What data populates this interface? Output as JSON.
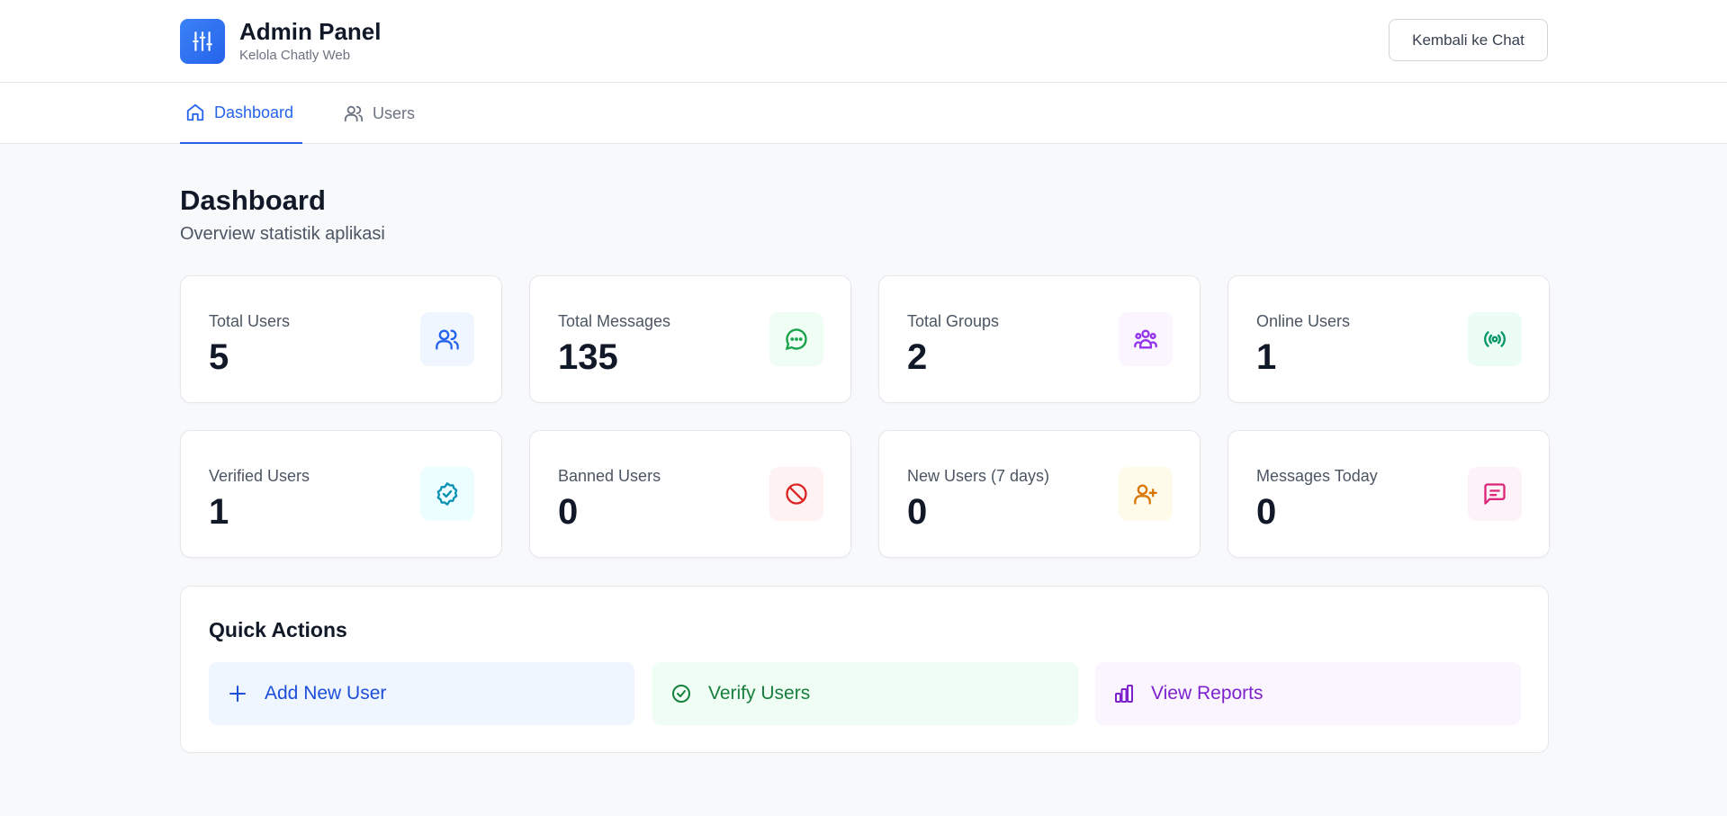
{
  "header": {
    "title": "Admin Panel",
    "subtitle": "Kelola Chatly Web",
    "back_button": "Kembali ke Chat",
    "logo_icon": "sliders-icon"
  },
  "tabs": [
    {
      "label": "Dashboard",
      "icon": "home-icon",
      "active": true
    },
    {
      "label": "Users",
      "icon": "users-icon",
      "active": false
    }
  ],
  "page": {
    "title": "Dashboard",
    "subtitle": "Overview statistik aplikasi"
  },
  "stats": [
    {
      "label": "Total Users",
      "value": "5",
      "icon": "users-icon",
      "icon_color": "#2563eb",
      "icon_bg": "#eff6ff"
    },
    {
      "label": "Total Messages",
      "value": "135",
      "icon": "message-circle-icon",
      "icon_color": "#16a34a",
      "icon_bg": "#f0fdf4"
    },
    {
      "label": "Total Groups",
      "value": "2",
      "icon": "group-icon",
      "icon_color": "#9333ea",
      "icon_bg": "#faf5ff"
    },
    {
      "label": "Online Users",
      "value": "1",
      "icon": "radio-icon",
      "icon_color": "#059669",
      "icon_bg": "#ecfdf5"
    },
    {
      "label": "Verified Users",
      "value": "1",
      "icon": "badge-check-icon",
      "icon_color": "#0891b2",
      "icon_bg": "#ecfeff"
    },
    {
      "label": "Banned Users",
      "value": "0",
      "icon": "ban-icon",
      "icon_color": "#dc2626",
      "icon_bg": "#fef2f2"
    },
    {
      "label": "New Users (7 days)",
      "value": "0",
      "icon": "user-plus-icon",
      "icon_color": "#d97706",
      "icon_bg": "#fffbeb"
    },
    {
      "label": "Messages Today",
      "value": "0",
      "icon": "message-square-icon",
      "icon_color": "#db2777",
      "icon_bg": "#fdf2f8"
    }
  ],
  "quick_actions": {
    "title": "Quick Actions",
    "items": [
      {
        "label": "Add New User",
        "icon": "plus-icon",
        "color": "#1d4ed8",
        "bg": "#eff6ff"
      },
      {
        "label": "Verify Users",
        "icon": "check-circle-icon",
        "color": "#15803d",
        "bg": "#f0fdf4"
      },
      {
        "label": "View Reports",
        "icon": "bar-chart-icon",
        "color": "#7e22ce",
        "bg": "#faf5ff"
      }
    ]
  }
}
